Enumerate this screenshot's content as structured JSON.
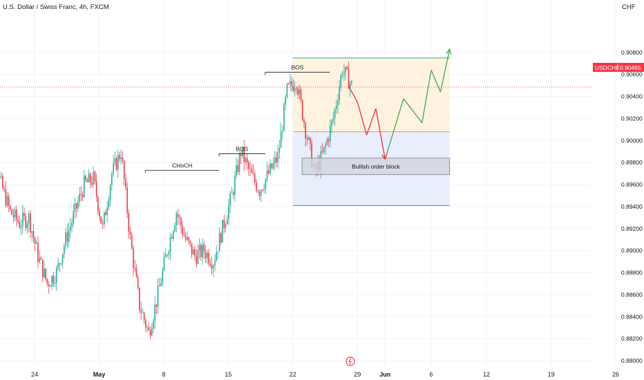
{
  "header": {
    "title": "U.S. Dollar / Swiss Franc, 4h, FXCM",
    "currency": "CHF"
  },
  "price_tag": {
    "symbol": "USDCHF",
    "value": "0.90485"
  },
  "colors": {
    "up": "#22ab94",
    "down": "#f23645",
    "grid": "#f0f3fa",
    "axis_text": "#131722",
    "price_line": "#f23645",
    "premium_fill": "#fff3e0",
    "discount_fill": "#e8eefb",
    "order_block_fill": "#d1d4dc",
    "path_up": "#4caf50",
    "path_down": "#f23645"
  },
  "chart_data": {
    "type": "candlestick",
    "symbol": "USDCHF",
    "timeframe": "4h",
    "source": "FXCM",
    "y_axis_ticks": [
      "0.90800",
      "0.90600",
      "0.90400",
      "0.90200",
      "0.90000",
      "0.89800",
      "0.89600",
      "0.89400",
      "0.89200",
      "0.89000",
      "0.88800",
      "0.88600",
      "0.88400",
      "0.88200",
      "0.88000"
    ],
    "ylim": [
      0.88,
      0.91
    ],
    "x_axis_ticks": [
      {
        "label": "24",
        "date": "2024-04-24"
      },
      {
        "label": "May",
        "date": "2024-05-01"
      },
      {
        "label": "8",
        "date": "2024-05-08"
      },
      {
        "label": "15",
        "date": "2024-05-15"
      },
      {
        "label": "22",
        "date": "2024-05-22"
      },
      {
        "label": "29",
        "date": "2024-05-29"
      },
      {
        "label": "Jun",
        "date": "2024-06-01"
      },
      {
        "label": "6",
        "date": "2024-06-06"
      },
      {
        "label": "12",
        "date": "2024-06-12"
      },
      {
        "label": "19",
        "date": "2024-06-19"
      },
      {
        "label": "26",
        "date": "2024-06-26"
      }
    ],
    "last_price": 0.90485,
    "closes": [
      {
        "date": "2024-04-19",
        "close": 0.8985
      },
      {
        "date": "2024-04-20",
        "close": 0.896
      },
      {
        "date": "2024-04-21",
        "close": 0.8935
      },
      {
        "date": "2024-04-22",
        "close": 0.8925
      },
      {
        "date": "2024-04-23",
        "close": 0.893
      },
      {
        "date": "2024-04-24",
        "close": 0.8895
      },
      {
        "date": "2024-04-25",
        "close": 0.887
      },
      {
        "date": "2024-04-26",
        "close": 0.888
      },
      {
        "date": "2024-04-27",
        "close": 0.891
      },
      {
        "date": "2024-04-28",
        "close": 0.8935
      },
      {
        "date": "2024-04-29",
        "close": 0.896
      },
      {
        "date": "2024-04-30",
        "close": 0.8965
      },
      {
        "date": "2024-05-01",
        "close": 0.892
      },
      {
        "date": "2024-05-02",
        "close": 0.897
      },
      {
        "date": "2024-05-03",
        "close": 0.899
      },
      {
        "date": "2024-05-04",
        "close": 0.891
      },
      {
        "date": "2024-05-05",
        "close": 0.885
      },
      {
        "date": "2024-05-06",
        "close": 0.8825
      },
      {
        "date": "2024-05-07",
        "close": 0.886
      },
      {
        "date": "2024-05-08",
        "close": 0.89
      },
      {
        "date": "2024-05-09",
        "close": 0.8935
      },
      {
        "date": "2024-05-10",
        "close": 0.891
      },
      {
        "date": "2024-05-11",
        "close": 0.8895
      },
      {
        "date": "2024-05-12",
        "close": 0.89
      },
      {
        "date": "2024-05-13",
        "close": 0.889
      },
      {
        "date": "2024-05-14",
        "close": 0.892
      },
      {
        "date": "2024-05-15",
        "close": 0.895
      },
      {
        "date": "2024-05-16",
        "close": 0.899
      },
      {
        "date": "2024-05-17",
        "close": 0.897
      },
      {
        "date": "2024-05-18",
        "close": 0.8955
      },
      {
        "date": "2024-05-19",
        "close": 0.897
      },
      {
        "date": "2024-05-20",
        "close": 0.8985
      },
      {
        "date": "2024-05-21",
        "close": 0.9045
      },
      {
        "date": "2024-05-22",
        "close": 0.9055
      },
      {
        "date": "2024-05-23",
        "close": 0.901
      },
      {
        "date": "2024-05-24",
        "close": 0.897
      },
      {
        "date": "2024-05-25",
        "close": 0.899
      },
      {
        "date": "2024-05-26",
        "close": 0.902
      },
      {
        "date": "2024-05-27",
        "close": 0.9065
      },
      {
        "date": "2024-05-28",
        "close": 0.905
      }
    ],
    "annotations": [
      {
        "label": "CHoCH",
        "price": 0.8973,
        "from_date": "2024-05-06",
        "to_date": "2024-05-14"
      },
      {
        "label": "BOS",
        "price": 0.8988,
        "from_date": "2024-05-14",
        "to_date": "2024-05-19"
      },
      {
        "label": "BOS",
        "price": 0.9062,
        "from_date": "2024-05-19",
        "to_date": "2024-05-26"
      },
      {
        "label": "Bullish order block",
        "price_top": 0.8984,
        "price_bottom": 0.8969,
        "from_date": "2024-05-23",
        "to_date": "2024-06-08"
      }
    ],
    "zones": [
      {
        "name": "premium",
        "price_top": 0.9075,
        "price_bottom": 0.9008,
        "from_date": "2024-05-22",
        "to_date": "2024-06-08"
      },
      {
        "name": "discount",
        "price_top": 0.9008,
        "price_bottom": 0.8941,
        "from_date": "2024-05-22",
        "to_date": "2024-06-08"
      }
    ],
    "projection_path": [
      {
        "date": "2024-05-28",
        "price": 0.905,
        "leg": "down"
      },
      {
        "date": "2024-05-29",
        "price": 0.9035,
        "leg": "down"
      },
      {
        "date": "2024-05-30",
        "price": 0.9005,
        "leg": "down"
      },
      {
        "date": "2024-05-31",
        "price": 0.9029,
        "leg": "down"
      },
      {
        "date": "2024-06-01",
        "price": 0.8983,
        "leg": "down"
      },
      {
        "date": "2024-06-03",
        "price": 0.9038,
        "leg": "up"
      },
      {
        "date": "2024-06-05",
        "price": 0.9016,
        "leg": "up"
      },
      {
        "date": "2024-06-06",
        "price": 0.9064,
        "leg": "up"
      },
      {
        "date": "2024-06-07",
        "price": 0.9044,
        "leg": "up"
      },
      {
        "date": "2024-06-08",
        "price": 0.9083,
        "leg": "up"
      }
    ],
    "grid": true
  }
}
